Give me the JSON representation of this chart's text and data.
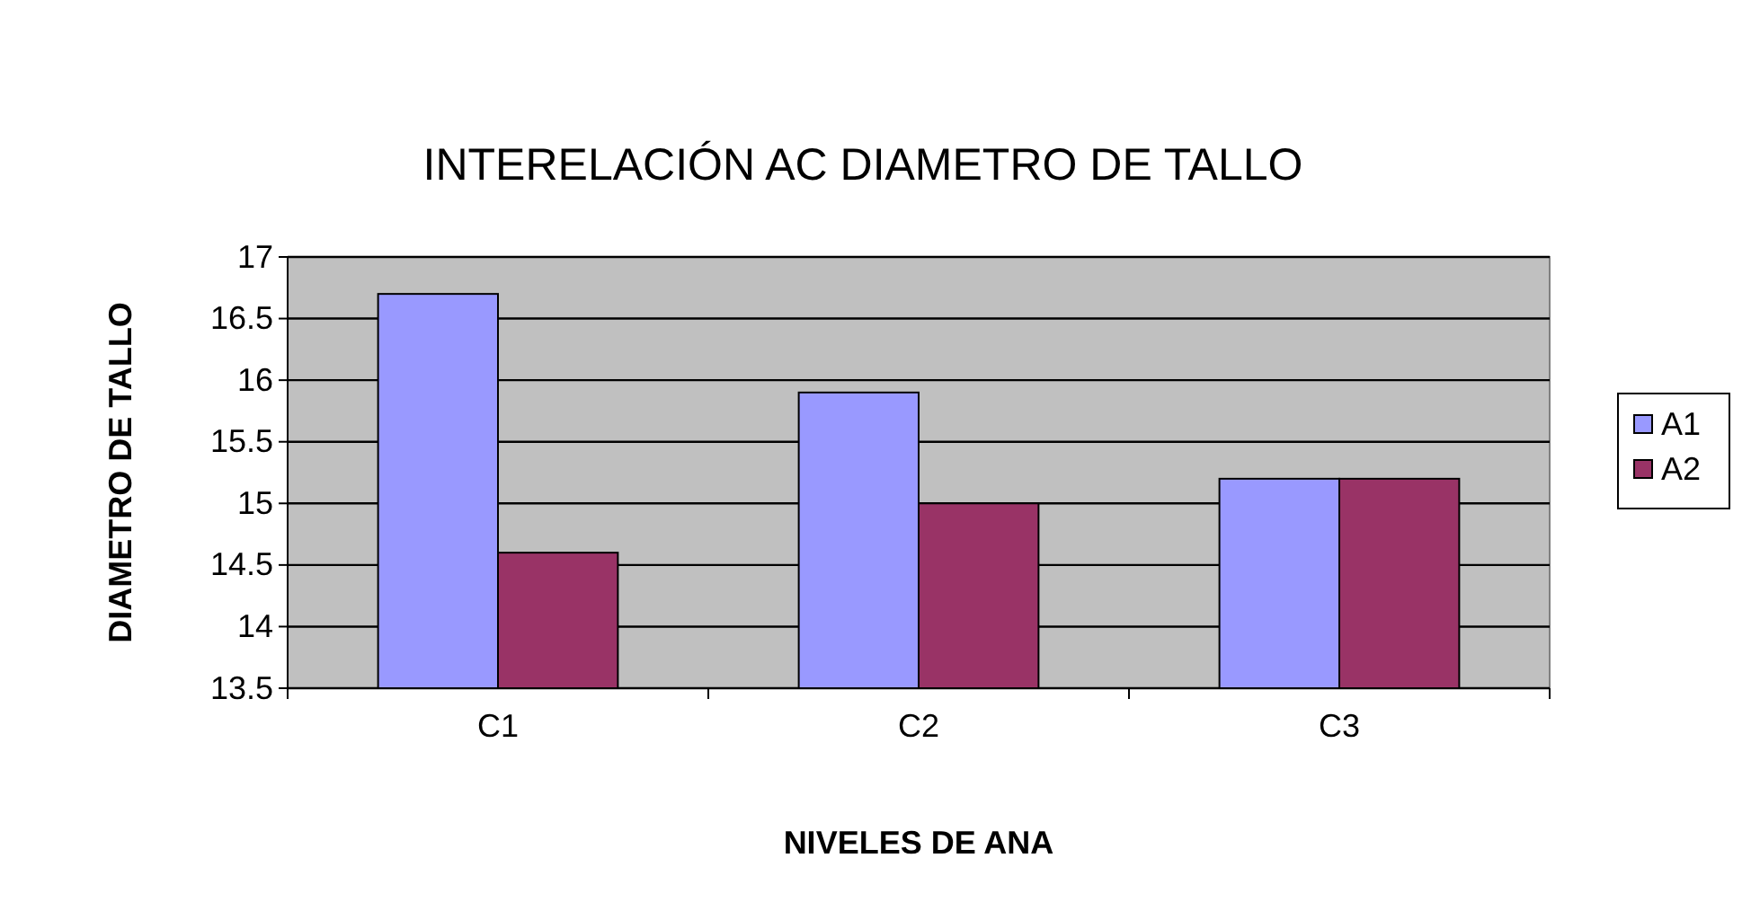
{
  "chart_data": {
    "type": "bar",
    "title": "INTERELACIÓN  AC DIAMETRO DE TALLO",
    "xlabel": "NIVELES DE ANA",
    "ylabel": "DIAMETRO DE TALLO",
    "categories": [
      "C1",
      "C2",
      "C3"
    ],
    "series": [
      {
        "name": "A1",
        "color": "#9999ff",
        "values": [
          16.7,
          15.9,
          15.2
        ]
      },
      {
        "name": "A2",
        "color": "#993366",
        "values": [
          14.6,
          15.0,
          15.2
        ]
      }
    ],
    "ylim": [
      13.5,
      17
    ],
    "yticks": [
      13.5,
      14,
      14.5,
      15,
      15.5,
      16,
      16.5,
      17
    ],
    "grid": "y",
    "legend": "right"
  }
}
